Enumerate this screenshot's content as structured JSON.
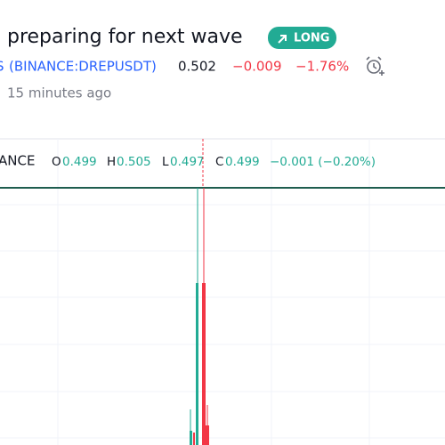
{
  "header": {
    "title": "preparing for next wave",
    "badge": "LONG",
    "time": "15 minutes ago"
  },
  "symbol": {
    "prefix": "S",
    "ticker": "(BINANCE:DREPUSDT)"
  },
  "quote": {
    "price": "0.502",
    "change": "−0.009",
    "change_percent": "−1.76%"
  },
  "legend": {
    "exchange": "ANCE",
    "open_label": "O",
    "open": "0.499",
    "high_label": "H",
    "high": "0.505",
    "low_label": "L",
    "low": "0.497",
    "close_label": "C",
    "close": "0.499",
    "change": "−0.001 (−0.20%)"
  }
}
